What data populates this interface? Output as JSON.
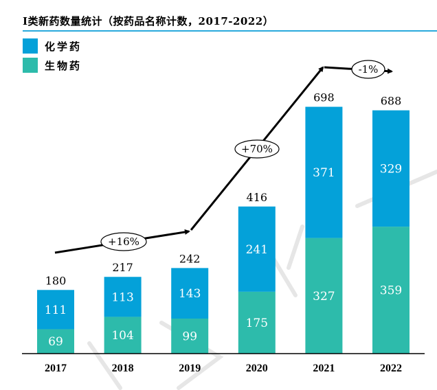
{
  "chart_data": {
    "type": "bar",
    "stacked": true,
    "title": "I类新药数量统计（按药品名称计数，2017-2022）",
    "xlabel": "",
    "ylabel": "",
    "categories": [
      "2017",
      "2018",
      "2019",
      "2020",
      "2021",
      "2022"
    ],
    "series": [
      {
        "name": "生物药",
        "color": "#2dbbab",
        "values": [
          69,
          104,
          99,
          175,
          327,
          359
        ]
      },
      {
        "name": "化学药",
        "color": "#04a1d9",
        "values": [
          111,
          113,
          143,
          241,
          371,
          329
        ]
      }
    ],
    "totals": [
      180,
      217,
      242,
      416,
      698,
      688
    ],
    "ylim": [
      0,
      720
    ],
    "grid": false,
    "legend_position": "top-left",
    "legend": [
      {
        "name": "化学药",
        "color": "#04a1d9"
      },
      {
        "name": "生物药",
        "color": "#2dbbab"
      }
    ],
    "annotations": [
      {
        "text": "+16%",
        "from": "2017",
        "to": "2019"
      },
      {
        "text": "+70%",
        "from": "2019",
        "to": "2021"
      },
      {
        "text": "-1%",
        "from": "2021",
        "to": "2022"
      }
    ]
  },
  "colors": {
    "title_rule": "#29a9dc",
    "axis": "#000000"
  }
}
